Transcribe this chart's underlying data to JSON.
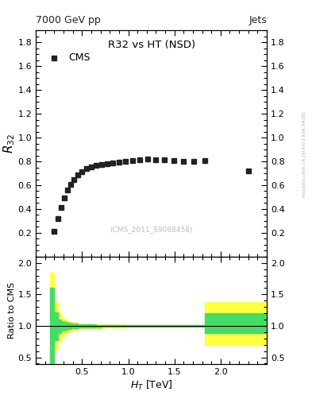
{
  "title_top_left": "7000 GeV pp",
  "title_top_right": "Jets",
  "main_title": "R32 vs HT",
  "main_title_nsd": " (NSD)",
  "dataset_label": "CMS",
  "watermark": "(CMS_2011_S9088458)",
  "arxiv_label": "mcplots.cern.ch [arXiv:1306.3436]",
  "ratio_ylabel": "Ratio to CMS",
  "main_ylim": [
    0.0,
    1.9
  ],
  "main_yticks": [
    0.2,
    0.4,
    0.6,
    0.8,
    1.0,
    1.2,
    1.4,
    1.6,
    1.8
  ],
  "xlim": [
    0.0,
    2.5
  ],
  "xticks": [
    0.5,
    1.0,
    1.5,
    2.0
  ],
  "ratio_ylim": [
    0.39,
    2.1
  ],
  "ratio_yticks": [
    0.5,
    1.0,
    1.5,
    2.0
  ],
  "cms_x": [
    0.195,
    0.235,
    0.27,
    0.305,
    0.34,
    0.375,
    0.41,
    0.455,
    0.5,
    0.55,
    0.6,
    0.655,
    0.71,
    0.77,
    0.835,
    0.9,
    0.97,
    1.045,
    1.125,
    1.21,
    1.3,
    1.395,
    1.495,
    1.6,
    1.71,
    1.83,
    2.3
  ],
  "cms_y": [
    0.215,
    0.32,
    0.415,
    0.49,
    0.56,
    0.605,
    0.645,
    0.69,
    0.715,
    0.74,
    0.755,
    0.77,
    0.775,
    0.78,
    0.79,
    0.795,
    0.8,
    0.81,
    0.815,
    0.82,
    0.815,
    0.815,
    0.81,
    0.8,
    0.8,
    0.805,
    0.72
  ],
  "ratio_band_yellow_x": [
    0.15,
    0.195,
    0.235,
    0.27,
    0.305,
    0.34,
    0.375,
    0.41,
    0.455,
    0.5,
    0.55,
    0.6,
    0.655,
    0.71,
    0.77,
    0.835,
    0.9,
    0.97,
    1.045,
    1.125,
    1.21,
    1.3,
    1.395,
    1.495,
    1.6,
    1.71,
    1.83,
    2.5
  ],
  "ratio_band_yellow_hi": [
    1.85,
    1.38,
    1.22,
    1.13,
    1.1,
    1.07,
    1.06,
    1.05,
    1.04,
    1.04,
    1.035,
    1.03,
    1.03,
    1.025,
    1.02,
    1.02,
    1.02,
    1.015,
    1.015,
    1.015,
    1.015,
    1.015,
    1.015,
    1.015,
    1.015,
    1.015,
    1.38,
    1.38
  ],
  "ratio_band_yellow_lo": [
    0.15,
    0.63,
    0.77,
    0.84,
    0.88,
    0.91,
    0.92,
    0.935,
    0.95,
    0.955,
    0.96,
    0.965,
    0.965,
    0.97,
    0.975,
    0.978,
    0.978,
    0.982,
    0.982,
    0.983,
    0.983,
    0.983,
    0.983,
    0.985,
    0.985,
    0.985,
    0.7,
    0.7
  ],
  "ratio_band_green_x": [
    0.15,
    0.195,
    0.235,
    0.27,
    0.305,
    0.34,
    0.375,
    0.41,
    0.455,
    0.5,
    0.55,
    0.6,
    0.655,
    0.71,
    0.77,
    0.835,
    0.9,
    0.97,
    1.045,
    1.125,
    1.21,
    1.3,
    1.395,
    1.495,
    1.6,
    1.71,
    1.83,
    2.5
  ],
  "ratio_band_green_hi": [
    1.6,
    1.22,
    1.1,
    1.07,
    1.06,
    1.05,
    1.04,
    1.035,
    1.03,
    1.025,
    1.02,
    1.02,
    1.018,
    1.015,
    1.015,
    1.012,
    1.012,
    1.01,
    1.01,
    1.01,
    1.01,
    1.01,
    1.01,
    1.01,
    1.01,
    1.01,
    1.2,
    1.2
  ],
  "ratio_band_green_lo": [
    0.4,
    0.77,
    0.88,
    0.92,
    0.935,
    0.945,
    0.955,
    0.962,
    0.968,
    0.972,
    0.975,
    0.978,
    0.98,
    0.982,
    0.984,
    0.986,
    0.986,
    0.988,
    0.988,
    0.989,
    0.989,
    0.989,
    0.989,
    0.99,
    0.99,
    0.99,
    0.88,
    0.88
  ],
  "background_color": "#ffffff",
  "cms_marker_color": "#222222",
  "cms_marker_size": 4.5,
  "band_yellow": "#ffff44",
  "band_green": "#44dd66"
}
